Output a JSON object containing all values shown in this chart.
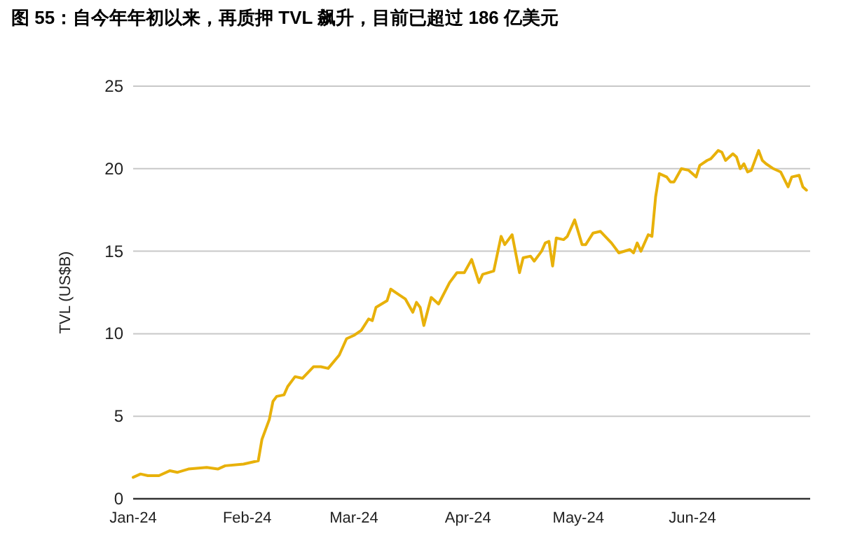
{
  "chart_data": {
    "type": "line",
    "title": "图 55：自今年年初以来，再质押 TVL 飙升，目前已超过 186 亿美元",
    "ylabel": "TVL (US$B)",
    "xlim": [
      "2024-01-01",
      "2024-07-03"
    ],
    "ylim": [
      0,
      25
    ],
    "yticks": [
      0,
      5,
      10,
      15,
      20,
      25
    ],
    "xticks": [
      {
        "value": "2024-01-01",
        "label": "Jan-24"
      },
      {
        "value": "2024-02-01",
        "label": "Feb-24"
      },
      {
        "value": "2024-03-01",
        "label": "Mar-24"
      },
      {
        "value": "2024-04-01",
        "label": "Apr-24"
      },
      {
        "value": "2024-05-01",
        "label": "May-24"
      },
      {
        "value": "2024-06-01",
        "label": "Jun-24"
      }
    ],
    "grid": "y",
    "marker": "none",
    "line_style": "solid",
    "x": [
      "2024-01-01",
      "2024-01-03",
      "2024-01-05",
      "2024-01-08",
      "2024-01-11",
      "2024-01-13",
      "2024-01-16",
      "2024-01-21",
      "2024-01-24",
      "2024-01-26",
      "2024-01-31",
      "2024-02-04",
      "2024-02-05",
      "2024-02-07",
      "2024-02-08",
      "2024-02-09",
      "2024-02-11",
      "2024-02-12",
      "2024-02-14",
      "2024-02-16",
      "2024-02-19",
      "2024-02-21",
      "2024-02-23",
      "2024-02-26",
      "2024-02-28",
      "2024-03-01",
      "2024-03-03",
      "2024-03-05",
      "2024-03-06",
      "2024-03-07",
      "2024-03-10",
      "2024-03-11",
      "2024-03-13",
      "2024-03-15",
      "2024-03-17",
      "2024-03-18",
      "2024-03-19",
      "2024-03-20",
      "2024-03-22",
      "2024-03-24",
      "2024-03-27",
      "2024-03-29",
      "2024-03-31",
      "2024-04-02",
      "2024-04-04",
      "2024-04-05",
      "2024-04-08",
      "2024-04-10",
      "2024-04-11",
      "2024-04-13",
      "2024-04-15",
      "2024-04-16",
      "2024-04-18",
      "2024-04-19",
      "2024-04-21",
      "2024-04-22",
      "2024-04-23",
      "2024-04-24",
      "2024-04-25",
      "2024-04-27",
      "2024-04-28",
      "2024-04-30",
      "2024-05-02",
      "2024-05-03",
      "2024-05-05",
      "2024-05-07",
      "2024-05-10",
      "2024-05-11",
      "2024-05-12",
      "2024-05-15",
      "2024-05-16",
      "2024-05-17",
      "2024-05-18",
      "2024-05-20",
      "2024-05-21",
      "2024-05-22",
      "2024-05-23",
      "2024-05-25",
      "2024-05-26",
      "2024-05-27",
      "2024-05-29",
      "2024-05-31",
      "2024-06-02",
      "2024-06-03",
      "2024-06-05",
      "2024-06-06",
      "2024-06-08",
      "2024-06-09",
      "2024-06-10",
      "2024-06-12",
      "2024-06-13",
      "2024-06-14",
      "2024-06-15",
      "2024-06-16",
      "2024-06-17",
      "2024-06-19",
      "2024-06-20",
      "2024-06-21",
      "2024-06-23",
      "2024-06-25",
      "2024-06-27",
      "2024-06-28",
      "2024-06-30",
      "2024-07-01",
      "2024-07-02"
    ],
    "series": [
      {
        "color": "#e8b10a",
        "values": [
          1.3,
          1.5,
          1.4,
          1.4,
          1.7,
          1.6,
          1.8,
          1.9,
          1.8,
          2.0,
          2.1,
          2.3,
          3.6,
          4.8,
          5.9,
          6.2,
          6.3,
          6.8,
          7.4,
          7.3,
          8.0,
          8.0,
          7.9,
          8.7,
          9.7,
          9.9,
          10.2,
          10.9,
          10.8,
          11.6,
          12.0,
          12.7,
          12.4,
          12.1,
          11.3,
          11.9,
          11.6,
          10.5,
          12.2,
          11.8,
          13.1,
          13.7,
          13.7,
          14.5,
          13.1,
          13.6,
          13.8,
          15.9,
          15.4,
          16.0,
          13.7,
          14.6,
          14.7,
          14.4,
          15.0,
          15.5,
          15.6,
          14.1,
          15.8,
          15.7,
          15.9,
          16.9,
          15.4,
          15.4,
          16.1,
          16.2,
          15.5,
          15.2,
          14.9,
          15.1,
          14.9,
          15.5,
          15.0,
          16.0,
          15.9,
          18.3,
          19.7,
          19.5,
          19.2,
          19.2,
          20.0,
          19.9,
          19.5,
          20.2,
          20.5,
          20.6,
          21.1,
          21.0,
          20.5,
          20.9,
          20.7,
          20.0,
          20.3,
          19.8,
          19.9,
          21.1,
          20.5,
          20.3,
          20.0,
          19.8,
          18.9,
          19.5,
          19.6,
          18.9,
          18.7
        ]
      }
    ]
  }
}
